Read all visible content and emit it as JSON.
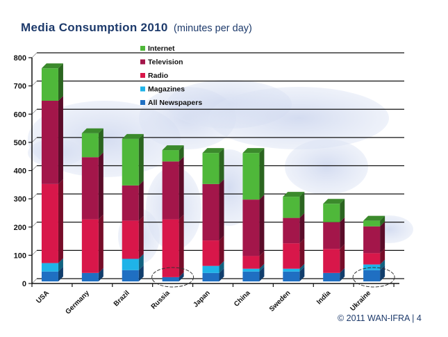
{
  "title": {
    "main": "Media Consumption 2010",
    "sub": "(minutes per day)"
  },
  "footer": "© 2011 WAN-IFRA | 4",
  "chart_data": {
    "type": "bar",
    "stacked": true,
    "style": "3d",
    "title": "Media Consumption 2010 (minutes per day)",
    "xlabel": "",
    "ylabel": "",
    "ylim": [
      0,
      800
    ],
    "yticks": [
      0,
      100,
      200,
      300,
      400,
      500,
      600,
      700,
      800
    ],
    "grid": true,
    "legend_position": "top-center",
    "categories": [
      "USA",
      "Germany",
      "Brazil",
      "Russia",
      "Japan",
      "China",
      "Sweden",
      "India",
      "Ukraine"
    ],
    "highlighted_categories": [
      "Russia",
      "Ukraine"
    ],
    "series": [
      {
        "name": "All Newspapers",
        "color": "#1f6fc2",
        "values": [
          35,
          30,
          40,
          15,
          30,
          35,
          35,
          30,
          40
        ]
      },
      {
        "name": "Magazines",
        "color": "#1fb3e8",
        "values": [
          30,
          0,
          40,
          0,
          25,
          10,
          10,
          0,
          20
        ]
      },
      {
        "name": "Radio",
        "color": "#d8174a",
        "values": [
          280,
          190,
          135,
          205,
          90,
          45,
          90,
          85,
          40
        ]
      },
      {
        "name": "Television",
        "color": "#a3164a",
        "values": [
          295,
          220,
          125,
          205,
          200,
          200,
          90,
          95,
          95
        ]
      },
      {
        "name": "Internet",
        "color": "#4fb83a",
        "values": [
          115,
          85,
          165,
          40,
          110,
          165,
          75,
          65,
          20
        ]
      }
    ],
    "legend_order": [
      "Internet",
      "Television",
      "Radio",
      "Magazines",
      "All Newspapers"
    ]
  }
}
